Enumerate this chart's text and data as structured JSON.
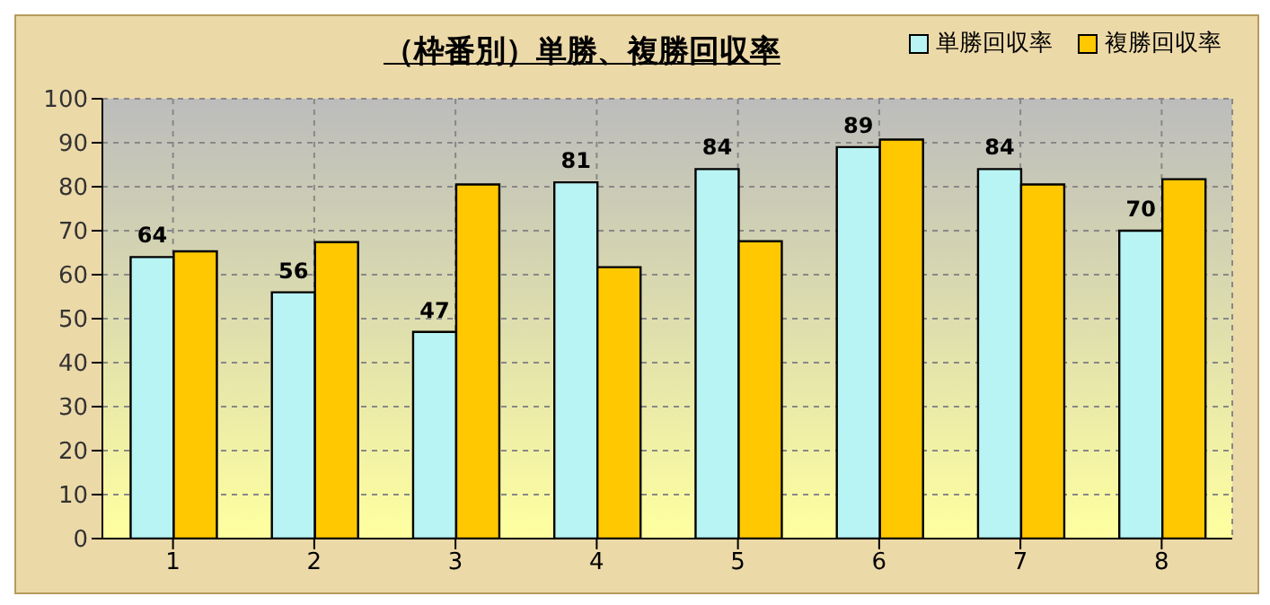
{
  "chart_data": {
    "type": "bar",
    "title": "（枠番別）単勝、複勝回収率",
    "categories": [
      "1",
      "2",
      "3",
      "4",
      "5",
      "6",
      "7",
      "8"
    ],
    "series": [
      {
        "name": "単勝回収率",
        "color": "#b8f4f4",
        "values": [
          64,
          56,
          47,
          81,
          84,
          89,
          84,
          70
        ],
        "value_labels": [
          "64",
          "56",
          "47",
          "81",
          "84",
          "89",
          "84",
          "70"
        ]
      },
      {
        "name": "複勝回収率",
        "color": "#ffc800",
        "values": [
          65.3,
          67.4,
          80.5,
          61.7,
          67.6,
          90.7,
          80.5,
          81.7
        ]
      }
    ],
    "ylim": [
      0,
      100
    ],
    "yticks": [
      0,
      10,
      20,
      30,
      40,
      50,
      60,
      70,
      80,
      90,
      100
    ],
    "grid": true,
    "legend": "top right"
  }
}
